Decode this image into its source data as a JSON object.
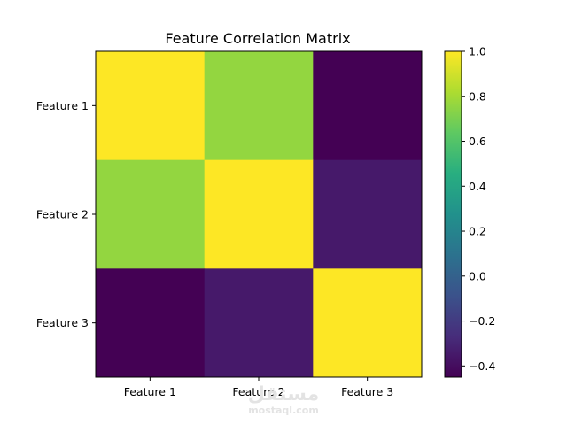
{
  "chart_data": {
    "type": "heatmap",
    "title": "Feature Correlation Matrix",
    "x_labels": [
      "Feature 1",
      "Feature 2",
      "Feature 3"
    ],
    "y_labels": [
      "Feature 1",
      "Feature 2",
      "Feature 3"
    ],
    "values": [
      [
        1.0,
        0.76,
        -0.45
      ],
      [
        0.76,
        1.0,
        -0.35
      ],
      [
        -0.45,
        -0.35,
        1.0
      ]
    ],
    "colormap": "viridis",
    "colorbar": {
      "range": [
        -0.45,
        1.0
      ],
      "ticks": [
        "−0.4",
        "−0.2",
        "0.0",
        "0.2",
        "0.4",
        "0.6",
        "0.8",
        "1.0"
      ]
    }
  },
  "watermark": {
    "arabic": "مستقل",
    "latin": "mostaql.com"
  }
}
